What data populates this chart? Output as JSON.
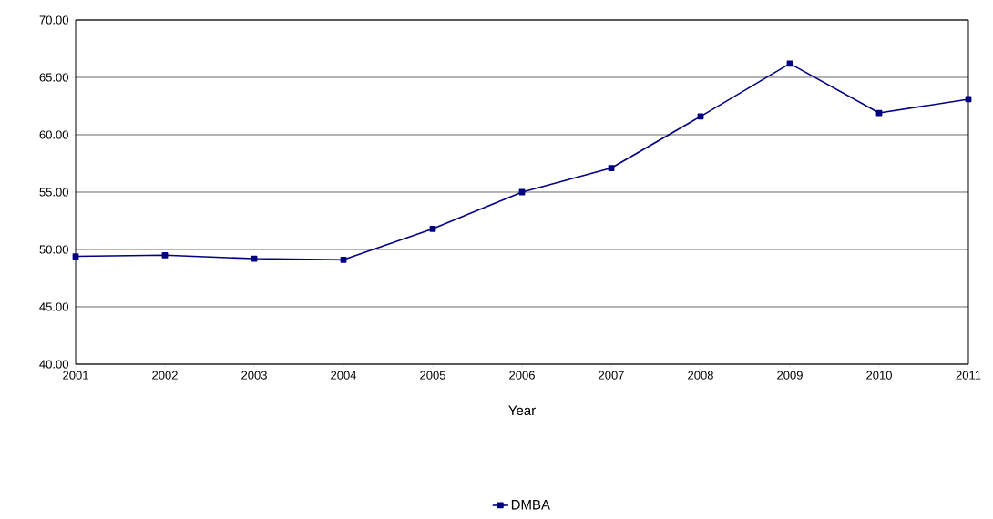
{
  "chart_data": {
    "type": "line",
    "xlabel": "Year",
    "x": [
      2001,
      2002,
      2003,
      2004,
      2005,
      2006,
      2007,
      2008,
      2009,
      2010,
      2011
    ],
    "series": [
      {
        "name": "DMBA",
        "color": "#000080",
        "values": [
          49.4,
          49.5,
          49.2,
          49.1,
          51.8,
          55.0,
          57.1,
          61.6,
          66.2,
          61.9,
          63.1
        ]
      }
    ],
    "xlim": [
      2001,
      2011
    ],
    "xticks": [
      2001,
      2002,
      2003,
      2004,
      2005,
      2006,
      2007,
      2008,
      2009,
      2010,
      2011
    ],
    "ylim": [
      40,
      70
    ],
    "yticks": [
      {
        "value": 40,
        "label": "40.00"
      },
      {
        "value": 45,
        "label": "45.00"
      },
      {
        "value": 50,
        "label": "50.00"
      },
      {
        "value": 55,
        "label": "55.00"
      },
      {
        "value": 60,
        "label": "60.00"
      },
      {
        "value": 65,
        "label": "65.00"
      },
      {
        "value": 70,
        "label": "70.00"
      }
    ],
    "grid": "y",
    "legend": "bottom",
    "marker": "square",
    "line_style": "solid"
  }
}
